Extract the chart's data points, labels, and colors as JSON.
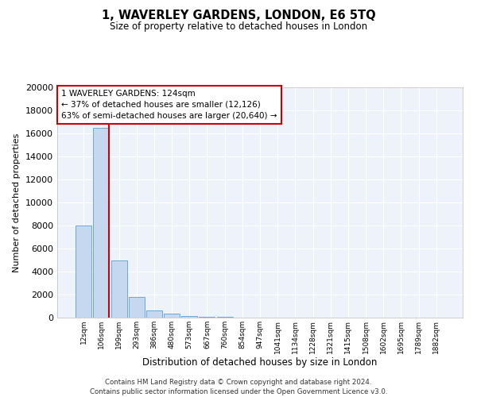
{
  "title": "1, WAVERLEY GARDENS, LONDON, E6 5TQ",
  "subtitle": "Size of property relative to detached houses in London",
  "xlabel": "Distribution of detached houses by size in London",
  "ylabel": "Number of detached properties",
  "bar_color": "#c5d8f0",
  "bar_edge_color": "#5a9fd4",
  "vline_color": "#cc0000",
  "vline_x": 1.43,
  "annotation_text": "1 WAVERLEY GARDENS: 124sqm\n← 37% of detached houses are smaller (12,126)\n63% of semi-detached houses are larger (20,640) →",
  "annotation_box_color": "#cc0000",
  "categories": [
    "12sqm",
    "106sqm",
    "199sqm",
    "293sqm",
    "386sqm",
    "480sqm",
    "573sqm",
    "667sqm",
    "760sqm",
    "854sqm",
    "947sqm",
    "1041sqm",
    "1134sqm",
    "1228sqm",
    "1321sqm",
    "1415sqm",
    "1508sqm",
    "1602sqm",
    "1695sqm",
    "1789sqm",
    "1882sqm"
  ],
  "values": [
    8000,
    16500,
    5000,
    1800,
    600,
    350,
    150,
    100,
    50,
    0,
    0,
    0,
    0,
    0,
    0,
    0,
    0,
    0,
    0,
    0,
    0
  ],
  "ylim": [
    0,
    20000
  ],
  "yticks": [
    0,
    2000,
    4000,
    6000,
    8000,
    10000,
    12000,
    14000,
    16000,
    18000,
    20000
  ],
  "footnote": "Contains HM Land Registry data © Crown copyright and database right 2024.\nContains public sector information licensed under the Open Government Licence v3.0.",
  "bg_color": "#edf2fb"
}
